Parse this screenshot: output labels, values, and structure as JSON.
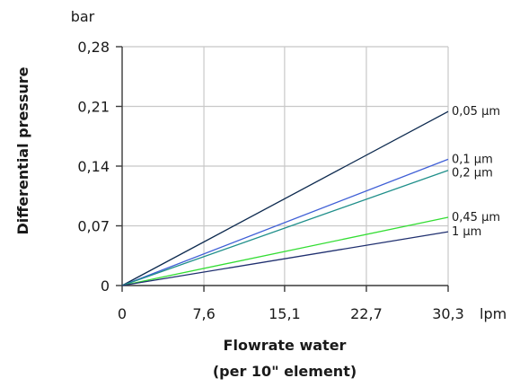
{
  "chart_data": {
    "type": "line",
    "title": "",
    "x_unit": "lpm",
    "y_unit": "bar",
    "xlabel": "Flowrate water",
    "xlabel_line2": "(per 10\" element)",
    "ylabel": "Differential pressure",
    "xlim": [
      0,
      30.3
    ],
    "ylim": [
      0,
      0.28
    ],
    "x_ticks": [
      0,
      7.6,
      15.1,
      22.7,
      30.3
    ],
    "x_tick_labels": [
      "0",
      "7,6",
      "15,1",
      "22,7",
      "30,3"
    ],
    "y_ticks": [
      0,
      0.07,
      0.14,
      0.21,
      0.28
    ],
    "y_tick_labels": [
      "0",
      "0,07",
      "0,14",
      "0,21",
      "0,28"
    ],
    "grid": true,
    "series": [
      {
        "name": "0,05 µm",
        "color": "#0d2a4f",
        "x": [
          0,
          30.3
        ],
        "y": [
          0,
          0.204
        ]
      },
      {
        "name": "0,1 µm",
        "color": "#3f5fd6",
        "x": [
          0,
          30.3
        ],
        "y": [
          0,
          0.148
        ]
      },
      {
        "name": "0,2 µm",
        "color": "#1f8f8a",
        "x": [
          0,
          30.3
        ],
        "y": [
          0,
          0.135
        ]
      },
      {
        "name": "0,45 µm",
        "color": "#33dd33",
        "x": [
          0,
          30.3
        ],
        "y": [
          0,
          0.08
        ]
      },
      {
        "name": "1 µm",
        "color": "#1f2f6f",
        "x": [
          0,
          30.3
        ],
        "y": [
          0,
          0.063
        ]
      }
    ]
  }
}
